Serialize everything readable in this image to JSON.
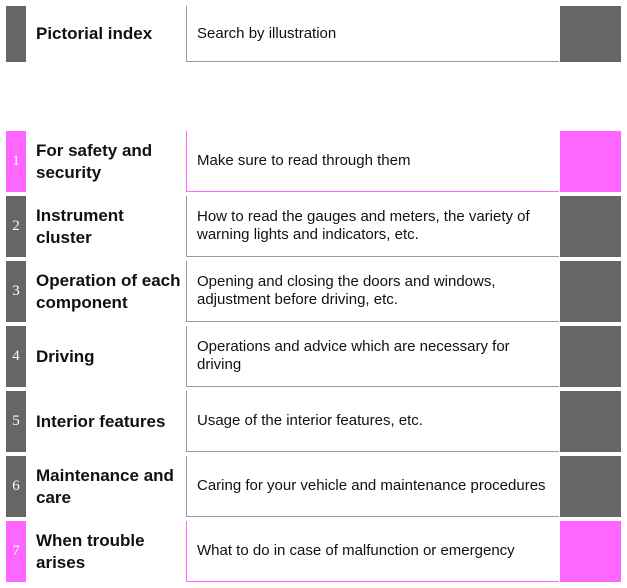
{
  "header_row": {
    "title": "Pictorial index",
    "description": "Search by illustration"
  },
  "chapters": [
    {
      "number": "1",
      "title": "For safety and security",
      "description": "Make sure to read through them",
      "accent": "#ff66ff"
    },
    {
      "number": "2",
      "title": "Instrument cluster",
      "description": "How to read the gauges and meters, the variety of warning lights and indicators, etc.",
      "accent": "#666666"
    },
    {
      "number": "3",
      "title": "Operation of each component",
      "description": "Opening and closing the doors and windows, adjustment before driving, etc.",
      "accent": "#666666"
    },
    {
      "number": "4",
      "title": "Driving",
      "description": "Operations and advice which are necessary for driving",
      "accent": "#666666"
    },
    {
      "number": "5",
      "title": "Interior features",
      "description": "Usage of the interior features, etc.",
      "accent": "#666666"
    },
    {
      "number": "6",
      "title": "Maintenance and care",
      "description": "Caring for your vehicle and maintenance procedures",
      "accent": "#666666"
    },
    {
      "number": "7",
      "title": "When trouble arises",
      "description": "What to do in case of malfunction or emergency",
      "accent": "#ff66ff"
    }
  ]
}
